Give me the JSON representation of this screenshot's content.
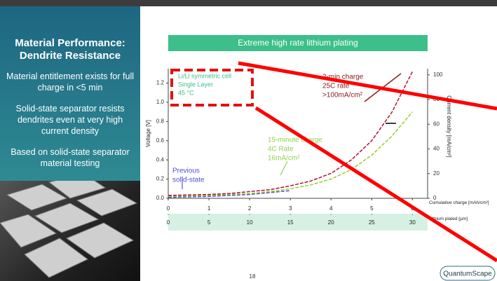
{
  "sidebar": {
    "title": "Material Performance: Dendrite Resistance",
    "points": [
      "Material entitlement exists for full charge in <5 min",
      "Solid-state separator resists dendrites even at very high current density",
      "Based on solid-state separator material testing"
    ]
  },
  "chart_data": {
    "type": "line",
    "title": "Extreme high rate lithium plating",
    "xlabel": "Cumulative charge [mAh/cm²]",
    "x2label": "Lithium plated [µm]",
    "ylabel": "Voltage [V]",
    "y2label": "Current density [mA/cm²]",
    "x": [
      0,
      0.5,
      1,
      1.5,
      2,
      2.5,
      3,
      3.5,
      4,
      4.5,
      5,
      5.5,
      6
    ],
    "series": [
      {
        "color": "#5050d8",
        "values": [
          0.01,
          0.015,
          0.02,
          0.03,
          0.04,
          0.06,
          0.08,
          null,
          null,
          null,
          null,
          null,
          null
        ]
      },
      {
        "color": "#9acd32",
        "values": [
          0.02,
          0.025,
          0.03,
          0.04,
          0.05,
          0.07,
          0.1,
          0.14,
          0.2,
          0.3,
          0.45,
          0.65,
          0.9
        ]
      },
      {
        "color": "#b01030",
        "values": [
          0.03,
          0.035,
          0.04,
          0.05,
          0.07,
          0.09,
          0.13,
          0.18,
          0.26,
          0.4,
          0.6,
          0.9,
          1.32
        ]
      }
    ],
    "xlim": [
      0,
      6.2
    ],
    "xticks": [
      0,
      1,
      2,
      3,
      4,
      5,
      6
    ],
    "x2lim": [
      0,
      31
    ],
    "x2ticks": [
      0,
      5,
      10,
      15,
      20,
      25,
      30
    ],
    "ylim": [
      0,
      1.35
    ],
    "yticks": [
      {
        "value": 0,
        "label": "0.0"
      },
      0.2,
      0.4,
      0.6,
      0.8,
      {
        "value": 1,
        "label": "1.0"
      },
      1.2
    ],
    "y2lim": [
      0,
      105
    ],
    "y2ticks": [
      0,
      20,
      40,
      60,
      80,
      100
    ],
    "inset": [
      "Li/Li symmetric cell",
      "Single Layer",
      "45 °C"
    ],
    "annotations": [
      {
        "color": "#8b1a1a",
        "lines": [
          "2-min charge",
          "25C rate",
          ">100mA/cm²"
        ]
      },
      {
        "color": "#8fd14f",
        "lines": [
          "15-minute charge",
          "4C Rate",
          "16mA/cm²"
        ]
      },
      {
        "color": "#5050d8",
        "lines": [
          "Previous",
          "solid-state"
        ]
      }
    ]
  },
  "page_number": "18",
  "logo": "QuantumScape"
}
